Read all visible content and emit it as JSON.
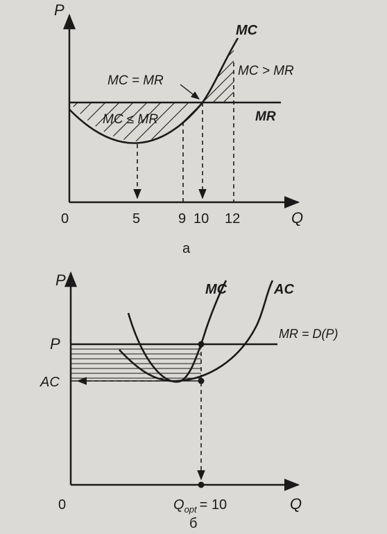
{
  "diagram_a": {
    "y_axis_label": "P",
    "x_axis_label": "Q",
    "origin_label": "0",
    "x_ticks": [
      "5",
      "9",
      "10",
      "12"
    ],
    "curve_mc_label": "MC",
    "curve_mr_label": "MR",
    "eq_label": "MC = MR",
    "le_label": "MC ≤ MR",
    "gt_label": "MC > MR",
    "caption": "а"
  },
  "diagram_b": {
    "y_axis_label": "P",
    "x_axis_label": "Q",
    "origin_label": "0",
    "price_label": "P",
    "ac_tick_label": "AC",
    "curve_mc_label": "MC",
    "curve_ac_label": "AC",
    "mr_label": "MR = D(P)",
    "qopt_label": "Q",
    "qopt_sub": "opt",
    "qopt_value": "= 10",
    "caption": "б"
  },
  "colors": {
    "ink": "#1a1a1a",
    "paper": "#dcdad6"
  }
}
